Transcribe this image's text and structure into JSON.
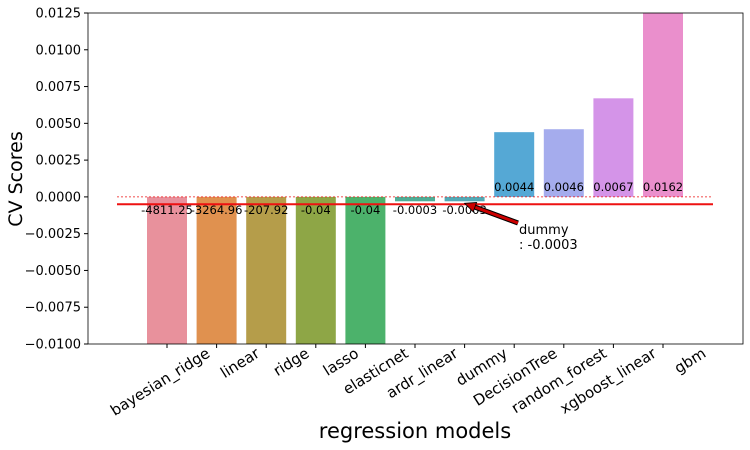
{
  "chart_data": {
    "type": "bar",
    "title": "",
    "xlabel": "regression models",
    "ylabel": "CV Scores",
    "ylim": [
      -0.01,
      0.0125
    ],
    "yticks": [
      -0.01,
      -0.0075,
      -0.005,
      -0.0025,
      0.0,
      0.0025,
      0.005,
      0.0075,
      0.01,
      0.0125
    ],
    "ytick_labels": [
      "−0.0100",
      "−0.0075",
      "−0.0050",
      "−0.0025",
      "0.0000",
      "0.0025",
      "0.0050",
      "0.0075",
      "0.0100",
      "0.0125"
    ],
    "grid": false,
    "categories": [
      "bayesian_ridge",
      "linear",
      "ridge",
      "lasso",
      "elasticnet",
      "ardr_linear",
      "dummy",
      "DecisionTree",
      "random_forest",
      "xgboost_linear",
      "gbm"
    ],
    "values": [
      -4811.25,
      -3264.96,
      -207.92,
      -0.04,
      -0.04,
      -0.0003,
      -0.0003,
      0.0044,
      0.0046,
      0.0067,
      0.0162
    ],
    "bar_labels": [
      "-4811.25",
      "-3264.96",
      "-207.92",
      "-0.04",
      "-0.04",
      "-0.0003",
      "-0.0003",
      "0.0044",
      "0.0046",
      "0.0067",
      "0.0162"
    ],
    "colors": [
      "#e8919c",
      "#e0914f",
      "#b59d4a",
      "#8ea646",
      "#4cb26b",
      "#4ead96",
      "#52a9b5",
      "#55a8d5",
      "#a5aced",
      "#d494e8",
      "#ea8fcc"
    ],
    "reference_line": {
      "value": -0.0003,
      "color": "#ee1111"
    },
    "baseline_line": {
      "value": 0.0,
      "style": "dashed",
      "color": "#ee1111"
    },
    "annotation": {
      "target_category": "dummy",
      "line1": "dummy",
      "line2": ": -0.0003",
      "arrow_color": "#cc0000"
    }
  }
}
